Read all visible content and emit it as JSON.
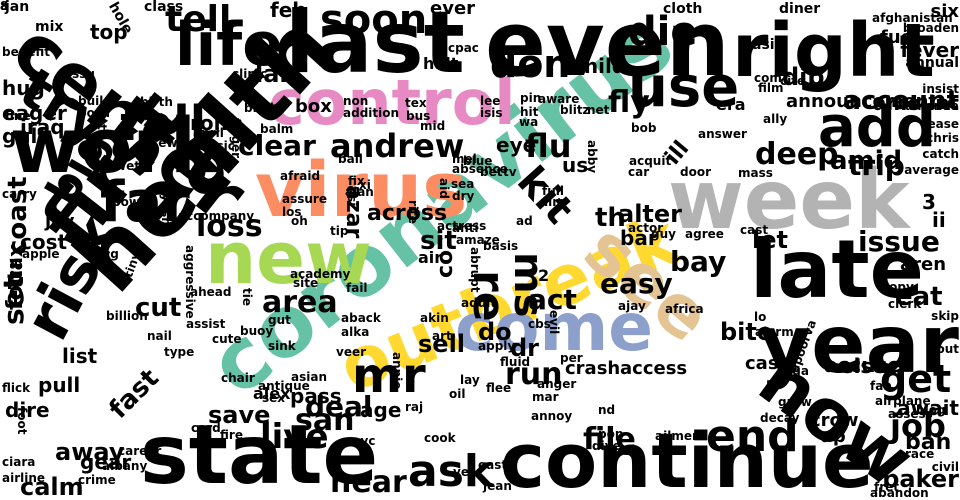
{
  "palette": {
    "black": "#000000",
    "pink": "#e78ac3",
    "orange": "#fc8d62",
    "green": "#66c2a5",
    "lime": "#a6d854",
    "blue": "#8da0cb",
    "yellow": "#ffd92f",
    "tan": "#e5c494",
    "gray": "#b3b3b3"
  },
  "words": [
    {
      "text": "coronavirus",
      "color": "green"
    },
    {
      "text": "virus",
      "color": "orange"
    },
    {
      "text": "outbreak",
      "color": "yellow"
    },
    {
      "text": "control",
      "color": "pink"
    },
    {
      "text": "new",
      "color": "lime"
    },
    {
      "text": "come",
      "color": "blue"
    },
    {
      "text": "see",
      "color": "tan"
    },
    {
      "text": "week",
      "color": "gray"
    },
    {
      "text": "health",
      "color": "black"
    },
    {
      "text": "last",
      "color": "black"
    },
    {
      "text": "even",
      "color": "black"
    },
    {
      "text": "center",
      "color": "black"
    },
    {
      "text": "right",
      "color": "black"
    },
    {
      "text": "work",
      "color": "black"
    },
    {
      "text": "state",
      "color": "black"
    },
    {
      "text": "continue",
      "color": "black"
    },
    {
      "text": "first",
      "color": "black"
    },
    {
      "text": "late",
      "color": "black"
    },
    {
      "text": "year",
      "color": "black"
    },
    {
      "text": "now",
      "color": "black"
    },
    {
      "text": "risk",
      "color": "black"
    },
    {
      "text": "far",
      "color": "black"
    },
    {
      "text": "life",
      "color": "black"
    },
    {
      "text": "try",
      "color": "black"
    },
    {
      "text": "use",
      "color": "black"
    },
    {
      "text": "add",
      "color": "black"
    },
    {
      "text": "mr",
      "color": "black"
    },
    {
      "text": "end",
      "color": "black"
    },
    {
      "text": "ask",
      "color": "black"
    },
    {
      "text": "big",
      "color": "black"
    },
    {
      "text": "fall",
      "color": "black"
    },
    {
      "text": "soon",
      "color": "black"
    },
    {
      "text": "tell",
      "color": "black"
    },
    {
      "text": "don",
      "color": "black"
    },
    {
      "text": "die",
      "color": "black"
    },
    {
      "text": "get",
      "color": "black"
    },
    {
      "text": "job",
      "color": "black"
    },
    {
      "text": "live",
      "color": "black"
    },
    {
      "text": "area",
      "color": "black"
    },
    {
      "text": "fly",
      "color": "black"
    },
    {
      "text": "flu",
      "color": "black"
    },
    {
      "text": "andrew",
      "color": "black"
    },
    {
      "text": "clear",
      "color": "black"
    },
    {
      "text": "deep",
      "color": "black"
    },
    {
      "text": "trip",
      "color": "black"
    },
    {
      "text": "issue",
      "color": "black"
    },
    {
      "text": "loss",
      "color": "black"
    },
    {
      "text": "hear",
      "color": "black"
    },
    {
      "text": "set",
      "color": "black"
    },
    {
      "text": "ms",
      "color": "black"
    },
    {
      "text": "re",
      "color": "black"
    },
    {
      "text": "run",
      "color": "black"
    },
    {
      "text": "san",
      "color": "black"
    },
    {
      "text": "deal",
      "color": "black"
    },
    {
      "text": "file",
      "color": "black"
    },
    {
      "text": "fast",
      "color": "black"
    },
    {
      "text": "away",
      "color": "black"
    },
    {
      "text": "account",
      "color": "black"
    },
    {
      "text": "easy",
      "color": "black"
    },
    {
      "text": "bay",
      "color": "black"
    },
    {
      "text": "let",
      "color": "black"
    },
    {
      "text": "alter",
      "color": "black"
    },
    {
      "text": "sit",
      "color": "black"
    },
    {
      "text": "act",
      "color": "black"
    },
    {
      "text": "cut",
      "color": "black"
    },
    {
      "text": "coast",
      "color": "black"
    },
    {
      "text": "lab",
      "color": "black"
    },
    {
      "text": "feb",
      "color": "black"
    },
    {
      "text": "dip",
      "color": "black"
    },
    {
      "text": "amid",
      "color": "black"
    },
    {
      "text": "eat",
      "color": "black"
    },
    {
      "text": "sell",
      "color": "black"
    },
    {
      "text": "do",
      "color": "black"
    },
    {
      "text": "dr",
      "color": "black"
    },
    {
      "text": "age",
      "color": "black"
    },
    {
      "text": "save",
      "color": "black"
    },
    {
      "text": "bite",
      "color": "black"
    },
    {
      "text": "ban",
      "color": "black"
    },
    {
      "text": "crash",
      "color": "black"
    },
    {
      "text": "access",
      "color": "black"
    },
    {
      "text": "ron",
      "color": "black"
    },
    {
      "text": "box",
      "color": "black"
    },
    {
      "text": "list",
      "color": "black"
    },
    {
      "text": "pull",
      "color": "black"
    },
    {
      "text": "four",
      "color": "black"
    },
    {
      "text": "tax",
      "color": "black"
    },
    {
      "text": "cost",
      "color": "black"
    },
    {
      "text": "jay",
      "color": "black"
    },
    {
      "text": "dire",
      "color": "black"
    },
    {
      "text": "gear",
      "color": "black"
    },
    {
      "text": "calm",
      "color": "black"
    },
    {
      "text": "baker",
      "color": "black"
    },
    {
      "text": "await",
      "color": "black"
    },
    {
      "text": "crow",
      "color": "black"
    },
    {
      "text": "up",
      "color": "black"
    },
    {
      "text": "else",
      "color": "black"
    },
    {
      "text": "cash",
      "color": "black"
    },
    {
      "text": "accuse",
      "color": "black"
    },
    {
      "text": "announcement",
      "color": "black"
    },
    {
      "text": "amount",
      "color": "black"
    },
    {
      "text": "fuel",
      "color": "black"
    },
    {
      "text": "six",
      "color": "black"
    },
    {
      "text": "fever",
      "color": "black"
    },
    {
      "text": "top",
      "color": "black"
    },
    {
      "text": "hug",
      "color": "black"
    },
    {
      "text": "eager",
      "color": "black"
    },
    {
      "text": "gulf",
      "color": "black"
    },
    {
      "text": "iraq",
      "color": "black"
    },
    {
      "text": "halt",
      "color": "black"
    },
    {
      "text": "ever",
      "color": "black"
    },
    {
      "text": "alex",
      "color": "black"
    },
    {
      "text": "pass",
      "color": "black"
    },
    {
      "text": "across",
      "color": "black"
    },
    {
      "text": "azar",
      "color": "black"
    },
    {
      "text": "th",
      "color": "black"
    },
    {
      "text": "co",
      "color": "black"
    },
    {
      "text": "us",
      "color": "black"
    },
    {
      "text": "ill",
      "color": "black"
    },
    {
      "text": "bar",
      "color": "black"
    },
    {
      "text": "kit",
      "color": "black"
    },
    {
      "text": "air",
      "color": "black"
    },
    {
      "text": "2",
      "color": "black"
    },
    {
      "text": "3",
      "color": "black"
    },
    {
      "text": "ii",
      "color": "black"
    },
    {
      "text": "aren",
      "color": "black"
    },
    {
      "text": "eye",
      "color": "black"
    },
    {
      "text": "child",
      "color": "black"
    },
    {
      "text": "era",
      "color": "black"
    },
    {
      "text": "asia",
      "color": "black"
    },
    {
      "text": "jan",
      "color": "black"
    },
    {
      "text": "mix",
      "color": "black"
    },
    {
      "text": "hole",
      "color": "black"
    },
    {
      "text": "class",
      "color": "black"
    },
    {
      "text": "cloth",
      "color": "black"
    },
    {
      "text": "diner",
      "color": "black"
    },
    {
      "text": "afghanistan",
      "color": "black"
    },
    {
      "text": "broaden",
      "color": "black"
    },
    {
      "text": "annual",
      "color": "black"
    },
    {
      "text": "benefit",
      "color": "black"
    },
    {
      "text": "issu",
      "color": "black"
    },
    {
      "text": "clinic",
      "color": "black"
    },
    {
      "text": "cpac",
      "color": "black"
    },
    {
      "text": "aware",
      "color": "black"
    },
    {
      "text": "net",
      "color": "black"
    },
    {
      "text": "com",
      "color": "black"
    },
    {
      "text": "cite",
      "color": "black"
    },
    {
      "text": "film",
      "color": "black"
    },
    {
      "text": "insist",
      "color": "black"
    },
    {
      "text": "amanda",
      "color": "black"
    },
    {
      "text": "ease",
      "color": "black"
    },
    {
      "text": "chris",
      "color": "black"
    },
    {
      "text": "catch",
      "color": "black"
    },
    {
      "text": "build",
      "color": "black"
    },
    {
      "text": "bowl",
      "color": "black"
    },
    {
      "text": "fine",
      "color": "black"
    },
    {
      "text": "birth",
      "color": "black"
    },
    {
      "text": "butt",
      "color": "black"
    },
    {
      "text": "bind",
      "color": "black"
    },
    {
      "text": "finger",
      "color": "black"
    },
    {
      "text": "non",
      "color": "black"
    },
    {
      "text": "addition",
      "color": "black"
    },
    {
      "text": "tex",
      "color": "black"
    },
    {
      "text": "bus",
      "color": "black"
    },
    {
      "text": "lee",
      "color": "black"
    },
    {
      "text": "isis",
      "color": "black"
    },
    {
      "text": "pin",
      "color": "black"
    },
    {
      "text": "hit",
      "color": "black"
    },
    {
      "text": "wa",
      "color": "black"
    },
    {
      "text": "blitz",
      "color": "black"
    },
    {
      "text": "ally",
      "color": "black"
    },
    {
      "text": "bob",
      "color": "black"
    },
    {
      "text": "answer",
      "color": "black"
    },
    {
      "text": "april",
      "color": "black"
    },
    {
      "text": "classic",
      "color": "black"
    },
    {
      "text": "few",
      "color": "black"
    },
    {
      "text": "balm",
      "color": "black"
    },
    {
      "text": "mid",
      "color": "black"
    },
    {
      "text": "wet",
      "color": "black"
    },
    {
      "text": "ball",
      "color": "black"
    },
    {
      "text": "mel",
      "color": "black"
    },
    {
      "text": "absence",
      "color": "black"
    },
    {
      "text": "sea",
      "color": "black"
    },
    {
      "text": "dry",
      "color": "black"
    },
    {
      "text": "blue",
      "color": "black"
    },
    {
      "text": "bet",
      "color": "black"
    },
    {
      "text": "tv",
      "color": "black"
    },
    {
      "text": "full",
      "color": "black"
    },
    {
      "text": "aim",
      "color": "black"
    },
    {
      "text": "abby",
      "color": "black"
    },
    {
      "text": "car",
      "color": "black"
    },
    {
      "text": "acquit",
      "color": "black"
    },
    {
      "text": "door",
      "color": "black"
    },
    {
      "text": "mass",
      "color": "black"
    },
    {
      "text": "carry",
      "color": "black"
    },
    {
      "text": "bow",
      "color": "black"
    },
    {
      "text": "ayushi",
      "color": "black"
    },
    {
      "text": "accompany",
      "color": "black"
    },
    {
      "text": "afraid",
      "color": "black"
    },
    {
      "text": "assure",
      "color": "black"
    },
    {
      "text": "los",
      "color": "black"
    },
    {
      "text": "oh",
      "color": "black"
    },
    {
      "text": "fix",
      "color": "black"
    },
    {
      "text": "alan",
      "color": "black"
    },
    {
      "text": "xi",
      "color": "black"
    },
    {
      "text": "isi",
      "color": "black"
    },
    {
      "text": "rite",
      "color": "black"
    },
    {
      "text": "aid",
      "color": "black"
    },
    {
      "text": "tip",
      "color": "black"
    },
    {
      "text": "actress",
      "color": "black"
    },
    {
      "text": "amaze",
      "color": "black"
    },
    {
      "text": "anti",
      "color": "black"
    },
    {
      "text": "ad",
      "color": "black"
    },
    {
      "text": "actor",
      "color": "black"
    },
    {
      "text": "guy",
      "color": "black"
    },
    {
      "text": "agree",
      "color": "black"
    },
    {
      "text": "cast",
      "color": "black"
    },
    {
      "text": "apple",
      "color": "black"
    },
    {
      "text": "chug",
      "color": "black"
    },
    {
      "text": "aggressive",
      "color": "black"
    },
    {
      "text": "tiny",
      "color": "black"
    },
    {
      "text": "clerk",
      "color": "black"
    },
    {
      "text": "copy",
      "color": "black"
    },
    {
      "text": "average",
      "color": "black"
    },
    {
      "text": "ahead",
      "color": "black"
    },
    {
      "text": "academy",
      "color": "black"
    },
    {
      "text": "site",
      "color": "black"
    },
    {
      "text": "fail",
      "color": "black"
    },
    {
      "text": "tie",
      "color": "black"
    },
    {
      "text": "billion",
      "color": "black"
    },
    {
      "text": "assist",
      "color": "black"
    },
    {
      "text": "gut",
      "color": "black"
    },
    {
      "text": "buoy",
      "color": "black"
    },
    {
      "text": "nail",
      "color": "black"
    },
    {
      "text": "type",
      "color": "black"
    },
    {
      "text": "cute",
      "color": "black"
    },
    {
      "text": "sink",
      "color": "black"
    },
    {
      "text": "aback",
      "color": "black"
    },
    {
      "text": "alka",
      "color": "black"
    },
    {
      "text": "adult",
      "color": "black"
    },
    {
      "text": "akin",
      "color": "black"
    },
    {
      "text": "art",
      "color": "black"
    },
    {
      "text": "cbs",
      "color": "black"
    },
    {
      "text": "evil",
      "color": "black"
    },
    {
      "text": "ajay",
      "color": "black"
    },
    {
      "text": "africa",
      "color": "black"
    },
    {
      "text": "alarm",
      "color": "black"
    },
    {
      "text": "lo",
      "color": "black"
    },
    {
      "text": "skip",
      "color": "black"
    },
    {
      "text": "bout",
      "color": "black"
    },
    {
      "text": "flick",
      "color": "black"
    },
    {
      "text": "foot",
      "color": "black"
    },
    {
      "text": "chair",
      "color": "black"
    },
    {
      "text": "antique",
      "color": "black"
    },
    {
      "text": "sex",
      "color": "black"
    },
    {
      "text": "asian",
      "color": "black"
    },
    {
      "text": "veer",
      "color": "black"
    },
    {
      "text": "annie",
      "color": "black"
    },
    {
      "text": "apply",
      "color": "black"
    },
    {
      "text": "fluid",
      "color": "black"
    },
    {
      "text": "per",
      "color": "black"
    },
    {
      "text": "flee",
      "color": "black"
    },
    {
      "text": "oil",
      "color": "black"
    },
    {
      "text": "lay",
      "color": "black"
    },
    {
      "text": "raj",
      "color": "black"
    },
    {
      "text": "anger",
      "color": "black"
    },
    {
      "text": "annoy",
      "color": "black"
    },
    {
      "text": "mar",
      "color": "black"
    },
    {
      "text": "nd",
      "color": "black"
    },
    {
      "text": "pop",
      "color": "black"
    },
    {
      "text": "dive",
      "color": "black"
    },
    {
      "text": "tie",
      "color": "black"
    },
    {
      "text": "ailment",
      "color": "black"
    },
    {
      "text": "lega",
      "color": "black"
    },
    {
      "text": "apoorva",
      "color": "black"
    },
    {
      "text": "grow",
      "color": "black"
    },
    {
      "text": "decay",
      "color": "black"
    },
    {
      "text": "fan",
      "color": "black"
    },
    {
      "text": "airplane",
      "color": "black"
    },
    {
      "text": "assess",
      "color": "black"
    },
    {
      "text": "blog",
      "color": "black"
    },
    {
      "text": "civil",
      "color": "black"
    },
    {
      "text": "race",
      "color": "black"
    },
    {
      "text": "fret",
      "color": "black"
    },
    {
      "text": "abandon",
      "color": "black"
    },
    {
      "text": "ciara",
      "color": "black"
    },
    {
      "text": "airline",
      "color": "black"
    },
    {
      "text": "crime",
      "color": "black"
    },
    {
      "text": "albany",
      "color": "black"
    },
    {
      "text": "career",
      "color": "black"
    },
    {
      "text": "card",
      "color": "black"
    },
    {
      "text": "fire",
      "color": "black"
    },
    {
      "text": "nyc",
      "color": "black"
    },
    {
      "text": "cook",
      "color": "black"
    },
    {
      "text": "east",
      "color": "black"
    },
    {
      "text": "yes",
      "color": "black"
    },
    {
      "text": "jean",
      "color": "black"
    },
    {
      "text": "abrupt",
      "color": "black"
    },
    {
      "text": "basis",
      "color": "black"
    },
    {
      "text": "8",
      "color": "black"
    },
    {
      "text": "a",
      "color": "black"
    }
  ]
}
